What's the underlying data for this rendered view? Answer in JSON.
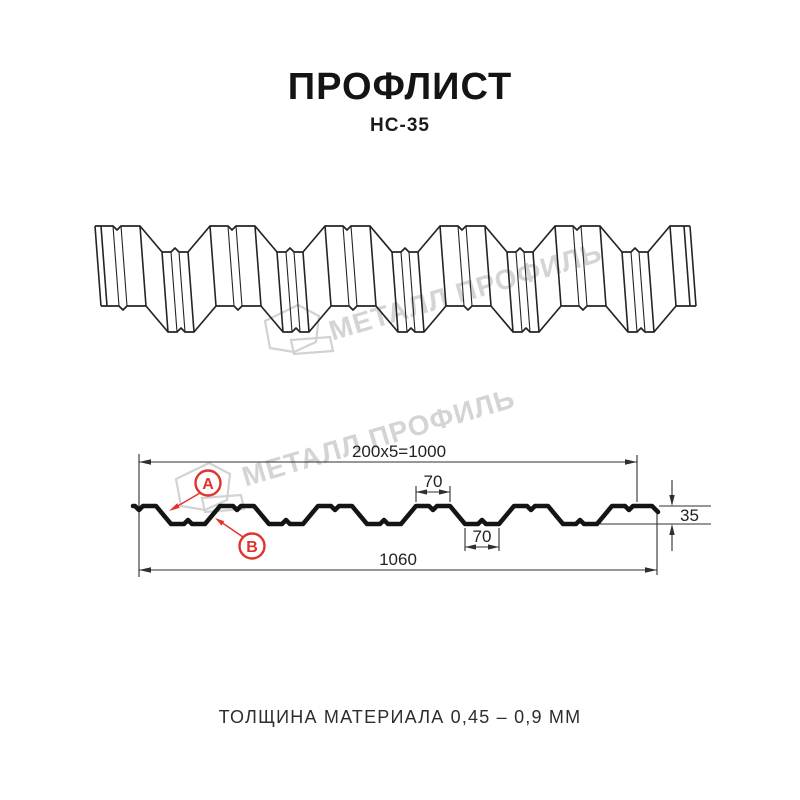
{
  "header": {
    "title": "ПРОФЛИСТ",
    "subtitle": "НС-35"
  },
  "watermark": {
    "text": "МЕТАЛЛ ПРОФИЛЬ"
  },
  "cross_section": {
    "dim_module": "200x5=1000",
    "dim_crest_width": "70",
    "dim_trough_width": "70",
    "dim_height": "35",
    "dim_total_width": "1060",
    "label_a": "А",
    "label_b": "В"
  },
  "footer": {
    "note": "ТОЛЩИНА МАТЕРИАЛА 0,45 – 0,9 ММ"
  },
  "colors": {
    "accent_red": "#e0332a",
    "line_dark": "#1c1c1c",
    "watermark_gray": "#d4d4d4"
  }
}
